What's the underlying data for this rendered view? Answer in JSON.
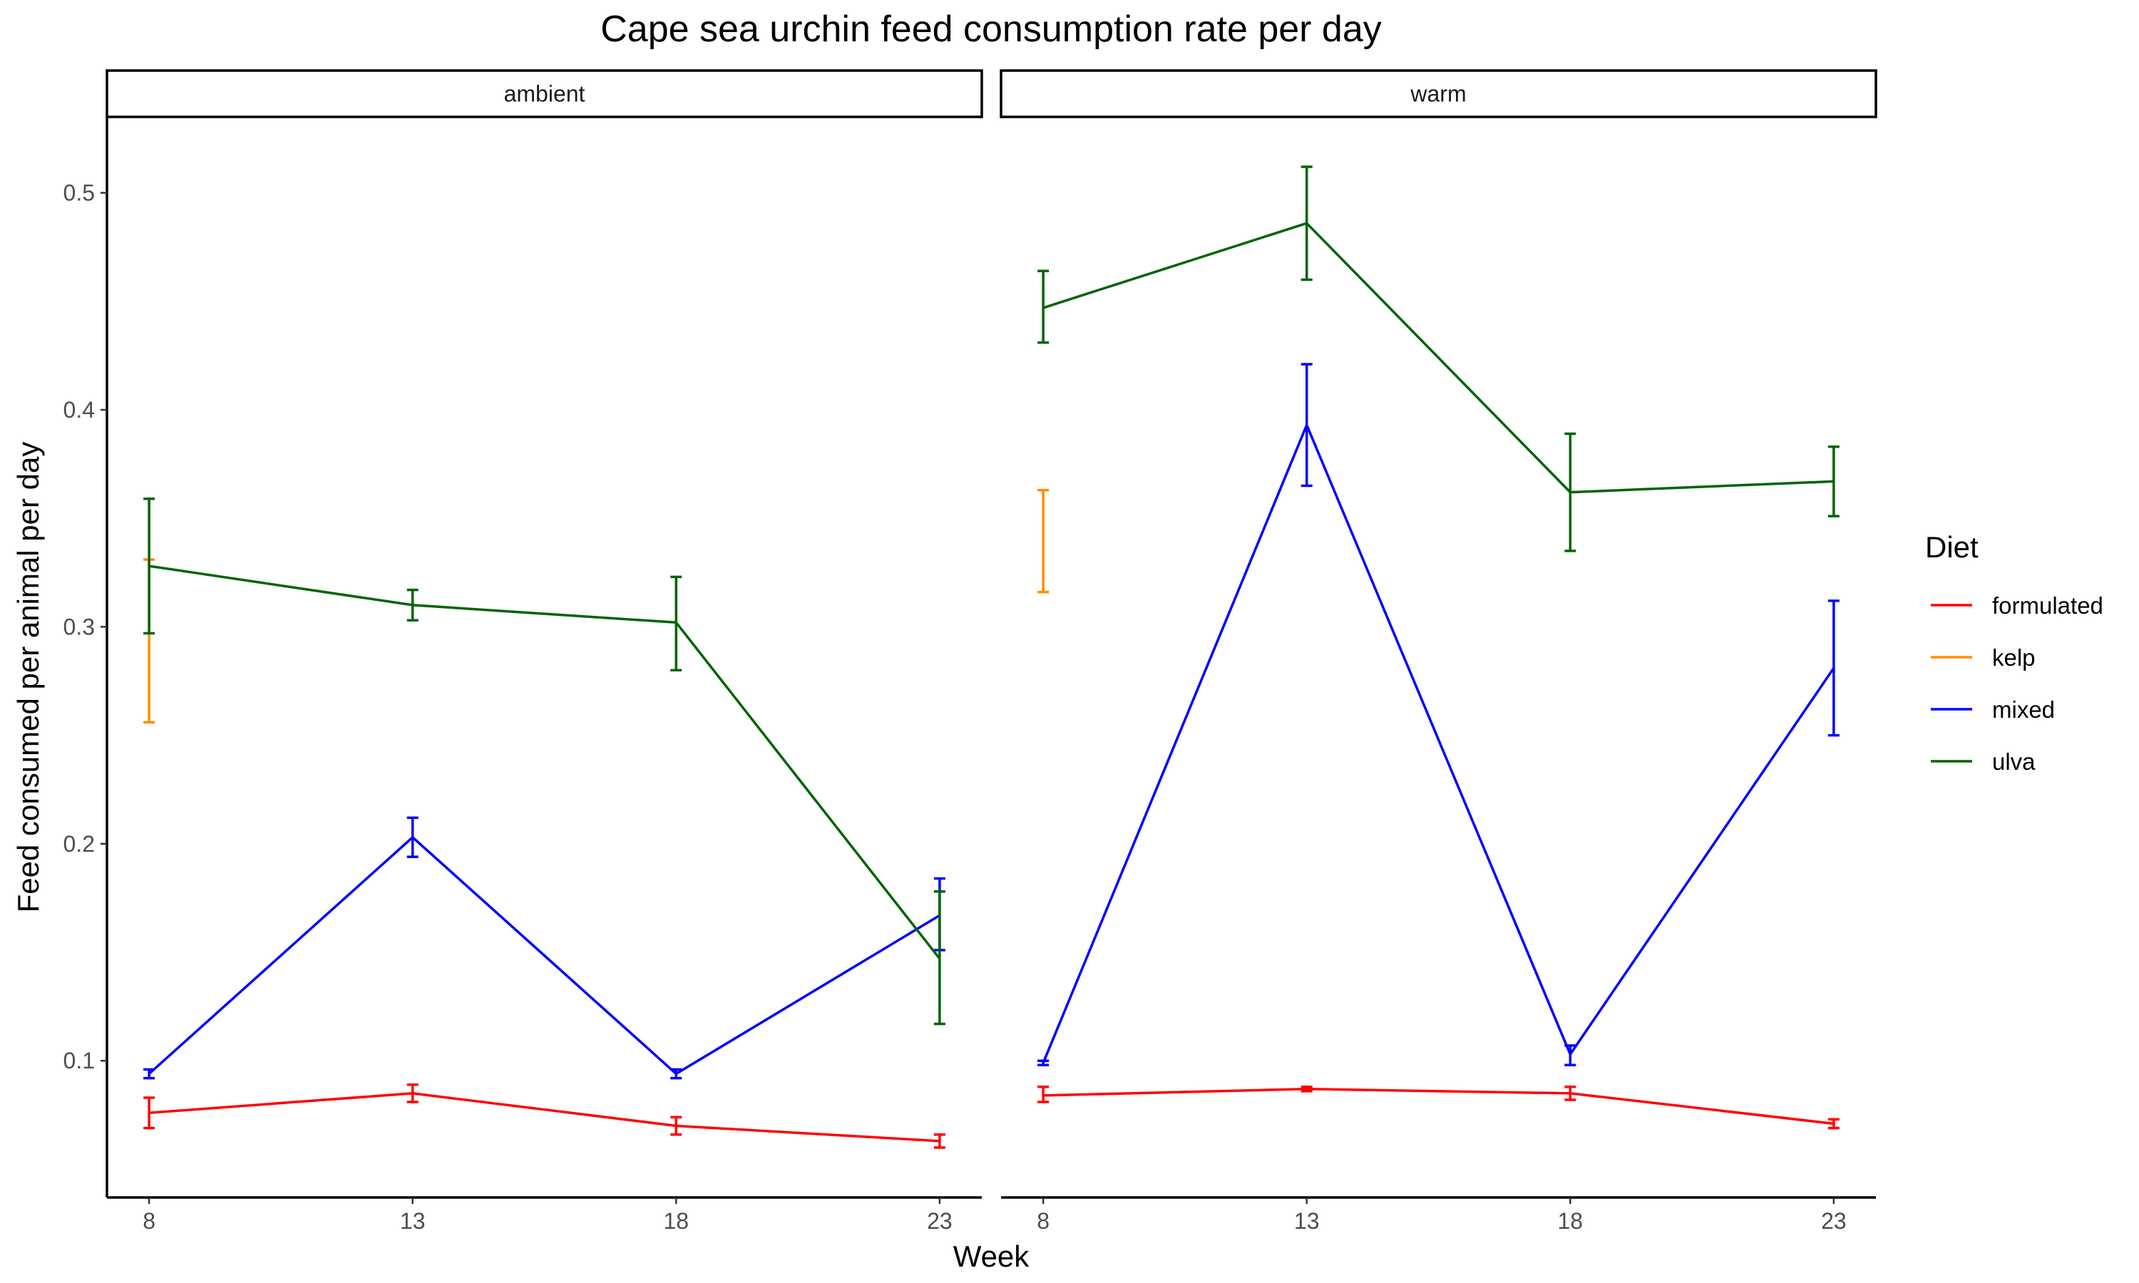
{
  "chart_data": {
    "type": "line",
    "title": "Cape sea urchin feed consumption rate per day",
    "xlabel": "Week",
    "ylabel": "Feed consumed per animal per day",
    "x_ticks": [
      8,
      13,
      18,
      23
    ],
    "y_ticks": [
      0.1,
      0.2,
      0.3,
      0.4,
      0.5
    ],
    "xlim": [
      7.2,
      23.8
    ],
    "ylim": [
      0.037,
      0.535
    ],
    "grid": false,
    "legend": {
      "title": "Diet",
      "placement": "right",
      "entries": [
        "formulated",
        "kelp",
        "mixed",
        "ulva"
      ]
    },
    "colors": {
      "formulated": "#ff0000",
      "kelp": "#ff8c00",
      "mixed": "#0000ff",
      "ulva": "#006400"
    },
    "panels": [
      {
        "label": "ambient",
        "series": [
          {
            "name": "formulated",
            "x": [
              8,
              13,
              18,
              23
            ],
            "y": [
              0.076,
              0.085,
              0.07,
              0.063
            ],
            "ymin": [
              0.069,
              0.081,
              0.066,
              0.06
            ],
            "ymax": [
              0.083,
              0.089,
              0.074,
              0.066
            ]
          },
          {
            "name": "kelp",
            "x": [
              8
            ],
            "y": [
              0.293
            ],
            "ymin": [
              0.256
            ],
            "ymax": [
              0.331
            ]
          },
          {
            "name": "mixed",
            "x": [
              8,
              13,
              18,
              23
            ],
            "y": [
              0.094,
              0.203,
              0.094,
              0.167
            ],
            "ymin": [
              0.092,
              0.194,
              0.092,
              0.151
            ],
            "ymax": [
              0.096,
              0.212,
              0.096,
              0.184
            ]
          },
          {
            "name": "ulva",
            "x": [
              8,
              13,
              18,
              23
            ],
            "y": [
              0.328,
              0.31,
              0.302,
              0.147
            ],
            "ymin": [
              0.297,
              0.303,
              0.28,
              0.117
            ],
            "ymax": [
              0.359,
              0.317,
              0.323,
              0.178
            ]
          }
        ]
      },
      {
        "label": "warm",
        "series": [
          {
            "name": "formulated",
            "x": [
              8,
              13,
              18,
              23
            ],
            "y": [
              0.084,
              0.087,
              0.085,
              0.071
            ],
            "ymin": [
              0.081,
              0.086,
              0.082,
              0.069
            ],
            "ymax": [
              0.088,
              0.088,
              0.088,
              0.073
            ]
          },
          {
            "name": "kelp",
            "x": [
              8
            ],
            "y": [
              0.339
            ],
            "ymin": [
              0.316
            ],
            "ymax": [
              0.363
            ]
          },
          {
            "name": "mixed",
            "x": [
              8,
              13,
              18,
              23
            ],
            "y": [
              0.099,
              0.393,
              0.103,
              0.281
            ],
            "ymin": [
              0.098,
              0.365,
              0.098,
              0.25
            ],
            "ymax": [
              0.1,
              0.421,
              0.107,
              0.312
            ]
          },
          {
            "name": "ulva",
            "x": [
              8,
              13,
              18,
              23
            ],
            "y": [
              0.447,
              0.486,
              0.362,
              0.367
            ],
            "ymin": [
              0.431,
              0.46,
              0.335,
              0.351
            ],
            "ymax": [
              0.464,
              0.512,
              0.389,
              0.383
            ]
          }
        ]
      }
    ]
  }
}
